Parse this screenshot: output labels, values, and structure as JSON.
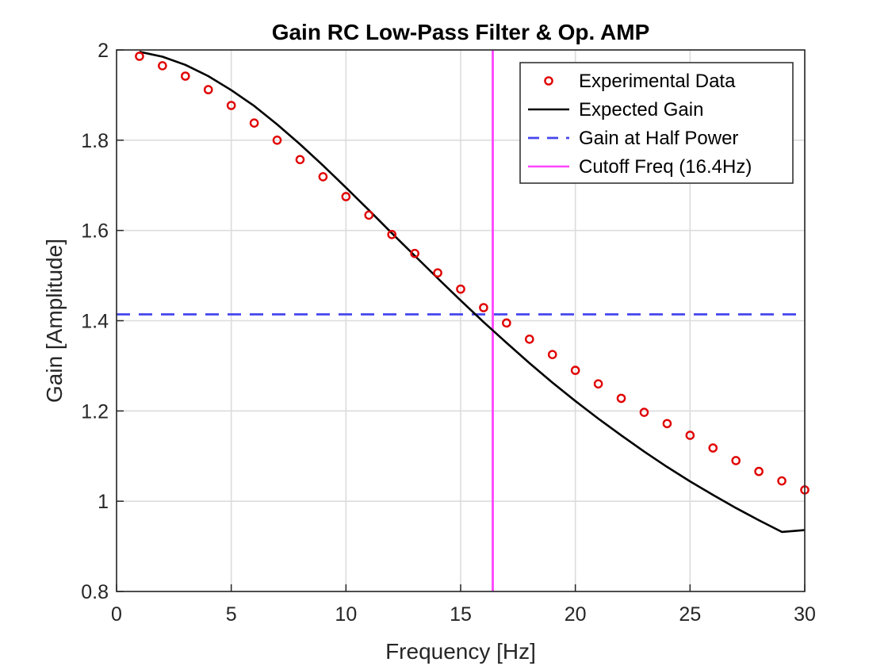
{
  "chart_data": {
    "type": "line",
    "title": "Gain RC Low-Pass Filter & Op. AMP",
    "xlabel": "Frequency [Hz]",
    "ylabel": "Gain [Amplitude]",
    "xlim": [
      0,
      30
    ],
    "ylim": [
      0.8,
      2
    ],
    "xticks": [
      0,
      5,
      10,
      15,
      20,
      25,
      30
    ],
    "yticks": [
      0.8,
      1,
      1.2,
      1.4,
      1.6,
      1.8,
      2
    ],
    "xtick_labels": [
      "0",
      "5",
      "10",
      "15",
      "20",
      "25",
      "30"
    ],
    "ytick_labels": [
      "0.8",
      "1",
      "1.2",
      "1.4",
      "1.6",
      "1.8",
      "2"
    ],
    "grid": true,
    "legend_position": "top-right",
    "series": [
      {
        "name": "Experimental Data",
        "style": "markers",
        "marker": "circle",
        "color": "#e00000",
        "x": [
          1,
          2,
          3,
          4,
          5,
          6,
          7,
          8,
          9,
          10,
          11,
          12,
          13,
          14,
          15,
          16,
          17,
          18,
          19,
          20,
          21,
          22,
          23,
          24,
          25,
          26,
          27,
          28,
          29,
          30
        ],
        "y": [
          1.986,
          1.965,
          1.942,
          1.912,
          1.877,
          1.838,
          1.8,
          1.757,
          1.719,
          1.675,
          1.634,
          1.591,
          1.549,
          1.506,
          1.47,
          1.429,
          1.395,
          1.359,
          1.325,
          1.29,
          1.26,
          1.228,
          1.197,
          1.172,
          1.146,
          1.118,
          1.09,
          1.066,
          1.045,
          1.025
        ]
      },
      {
        "name": "Expected Gain",
        "style": "line",
        "color": "#000000",
        "x": [
          1,
          2,
          3,
          4,
          5,
          6,
          7,
          8,
          9,
          10,
          11,
          12,
          13,
          14,
          15,
          16,
          17,
          18,
          19,
          20,
          21,
          22,
          23,
          24,
          25,
          26,
          27,
          28,
          29,
          30
        ],
        "y": [
          1.996,
          1.985,
          1.967,
          1.942,
          1.911,
          1.876,
          1.835,
          1.791,
          1.744,
          1.695,
          1.645,
          1.594,
          1.544,
          1.494,
          1.445,
          1.397,
          1.351,
          1.306,
          1.263,
          1.222,
          1.183,
          1.146,
          1.11,
          1.076,
          1.044,
          1.014,
          0.985,
          0.958,
          0.932,
          0.936
        ]
      },
      {
        "name": "Gain at Half Power",
        "style": "dashed-hline",
        "color": "#4545ee",
        "y": 1.414
      },
      {
        "name": "Cutoff Freq (16.4Hz)",
        "style": "vline",
        "color": "#ff44ff",
        "x": 16.4
      }
    ]
  }
}
